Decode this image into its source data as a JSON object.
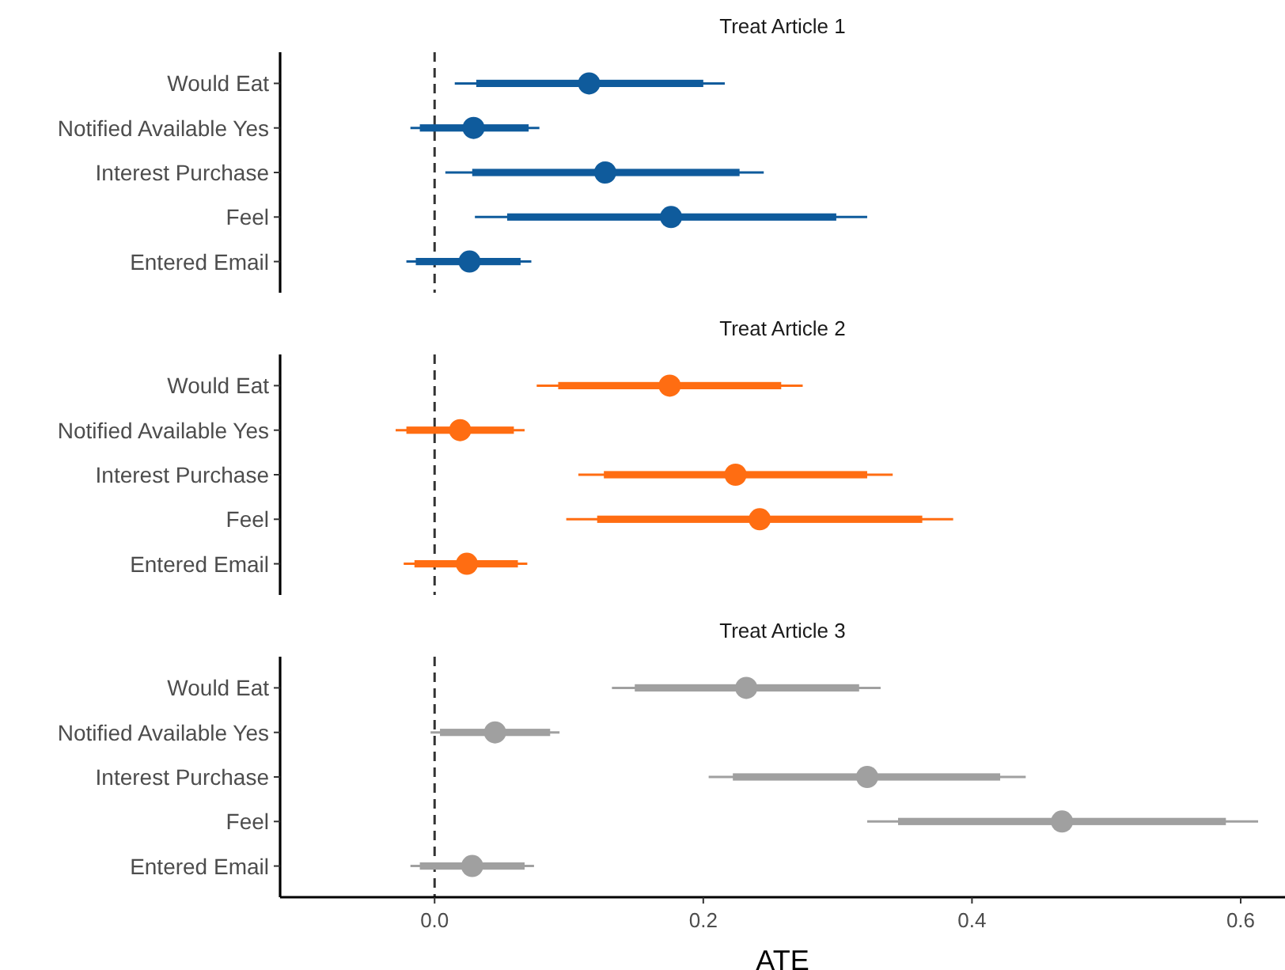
{
  "chart_data": [
    {
      "type": "scatter",
      "title": "Treat Article 1",
      "orientation": "horizontal",
      "categories": [
        "Would Eat",
        "Notified Available Yes",
        "Interest Purchase",
        "Feel",
        "Entered Email"
      ],
      "xlim": [
        -0.115,
        0.633
      ],
      "tick_labels": "y",
      "ref_lines": [
        {
          "axis": "x",
          "value": 0,
          "line_style": "dashed",
          "color": "#333333"
        }
      ],
      "series": [
        {
          "type": "bar",
          "color": "#0f5b9c",
          "base": [
            0.031,
            -0.011,
            0.028,
            0.054,
            -0.014
          ],
          "values": [
            0.169,
            0.081,
            0.199,
            0.245,
            0.078
          ]
        },
        {
          "type": "scatter",
          "color": "#0f5b9c",
          "values": [
            0.115,
            0.029,
            0.127,
            0.176,
            0.026
          ],
          "errors": [
            [
              0.015,
              0.216
            ],
            [
              -0.018,
              0.078
            ],
            [
              0.008,
              0.245
            ],
            [
              0.03,
              0.322
            ],
            [
              -0.021,
              0.072
            ]
          ]
        }
      ]
    },
    {
      "type": "scatter",
      "title": "Treat Article 2",
      "orientation": "horizontal",
      "categories": [
        "Would Eat",
        "Notified Available Yes",
        "Interest Purchase",
        "Feel",
        "Entered Email"
      ],
      "xlim": [
        -0.115,
        0.633
      ],
      "tick_labels": "y",
      "ref_lines": [
        {
          "axis": "x",
          "value": 0,
          "line_style": "dashed",
          "color": "#333333"
        }
      ],
      "series": [
        {
          "type": "bar",
          "color": "#ff6d12",
          "base": [
            0.092,
            -0.021,
            0.126,
            0.121,
            -0.015
          ],
          "values": [
            0.166,
            0.08,
            0.196,
            0.242,
            0.077
          ]
        },
        {
          "type": "scatter",
          "color": "#ff6d12",
          "values": [
            0.175,
            0.019,
            0.224,
            0.242,
            0.024
          ],
          "errors": [
            [
              0.076,
              0.274
            ],
            [
              -0.029,
              0.067
            ],
            [
              0.107,
              0.341
            ],
            [
              0.098,
              0.386
            ],
            [
              -0.023,
              0.069
            ]
          ]
        }
      ]
    },
    {
      "type": "scatter",
      "title": "Treat Article 3",
      "xlabel": "ATE",
      "orientation": "horizontal",
      "categories": [
        "Would Eat",
        "Notified Available Yes",
        "Interest Purchase",
        "Feel",
        "Entered Email"
      ],
      "xlim": [
        -0.115,
        0.633
      ],
      "xticks": [
        {
          "value": 0,
          "label": "0.0"
        },
        0.2,
        0.4,
        0.6
      ],
      "ref_lines": [
        {
          "axis": "x",
          "value": 0,
          "line_style": "dashed",
          "color": "#333333"
        }
      ],
      "series": [
        {
          "type": "bar",
          "color": "#a0a0a0",
          "base": [
            0.149,
            0.004,
            0.222,
            0.345,
            -0.011
          ],
          "values": [
            0.167,
            0.082,
            0.199,
            0.244,
            0.078
          ]
        },
        {
          "type": "scatter",
          "color": "#a0a0a0",
          "values": [
            0.232,
            0.045,
            0.322,
            0.467,
            0.028
          ],
          "errors": [
            [
              0.132,
              0.332
            ],
            [
              -0.003,
              0.093
            ],
            [
              0.204,
              0.44
            ],
            [
              0.322,
              0.613
            ],
            [
              -0.018,
              0.074
            ]
          ]
        }
      ]
    }
  ]
}
